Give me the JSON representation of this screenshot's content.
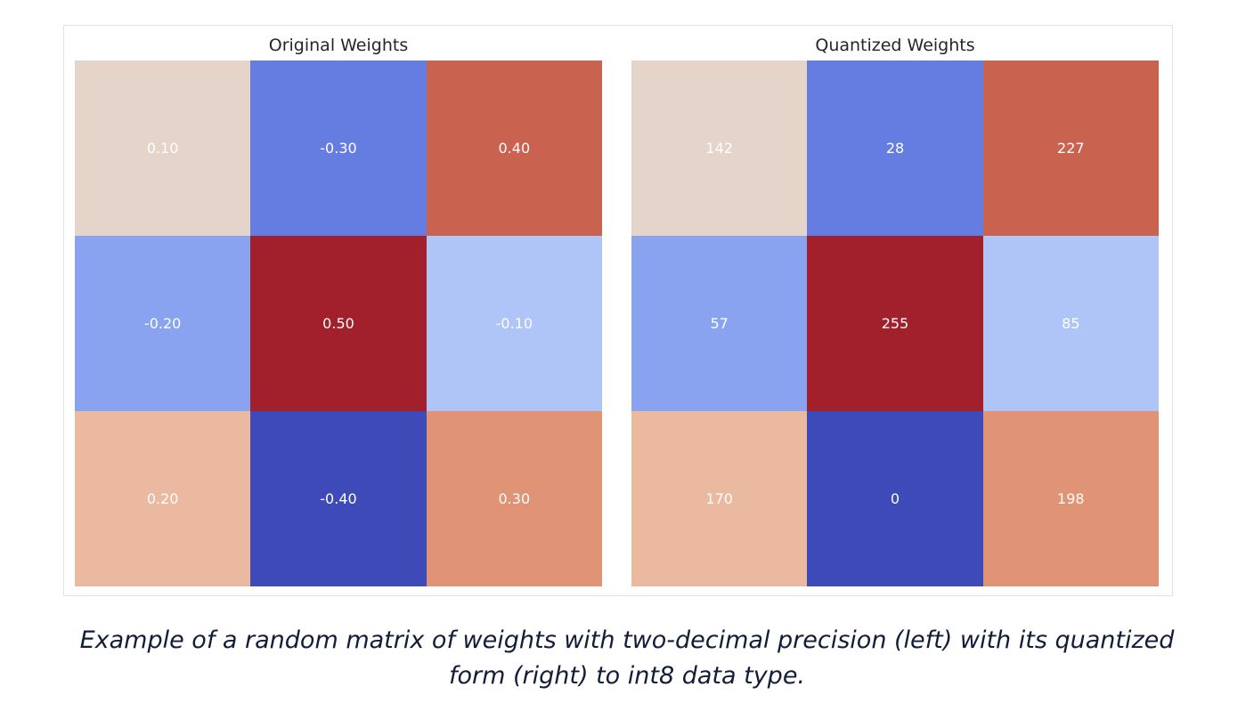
{
  "chart_data": [
    {
      "type": "heatmap",
      "title": "Original Weights",
      "rows": [
        [
          0.1,
          -0.3,
          0.4
        ],
        [
          -0.2,
          0.5,
          -0.1
        ],
        [
          0.2,
          -0.4,
          0.3
        ]
      ],
      "labels": [
        [
          "0.10",
          "-0.30",
          "0.40"
        ],
        [
          "-0.20",
          "0.50",
          "-0.10"
        ],
        [
          "0.20",
          "-0.40",
          "0.30"
        ]
      ],
      "colors": [
        [
          "#e4d4c9",
          "#657ce0",
          "#c9624f"
        ],
        [
          "#89a3f1",
          "#a2202b",
          "#afc4f7"
        ],
        [
          "#ebb8a0",
          "#3f4ab9",
          "#e09375"
        ]
      ],
      "vmin": -0.4,
      "vmax": 0.5
    },
    {
      "type": "heatmap",
      "title": "Quantized Weights",
      "rows": [
        [
          142,
          28,
          227
        ],
        [
          57,
          255,
          85
        ],
        [
          170,
          0,
          198
        ]
      ],
      "labels": [
        [
          "142",
          "28",
          "227"
        ],
        [
          "57",
          "255",
          "85"
        ],
        [
          "170",
          "0",
          "198"
        ]
      ],
      "colors": [
        [
          "#e4d4c9",
          "#657ce0",
          "#c9624f"
        ],
        [
          "#89a3f1",
          "#a2202b",
          "#afc4f7"
        ],
        [
          "#ebb8a0",
          "#3f4ab9",
          "#e09375"
        ]
      ],
      "vmin": 0,
      "vmax": 255
    }
  ],
  "caption": {
    "line1": "Example of a random matrix of weights with two-decimal precision (left) with its quantized",
    "line2": "form (right) to int8 data type."
  }
}
